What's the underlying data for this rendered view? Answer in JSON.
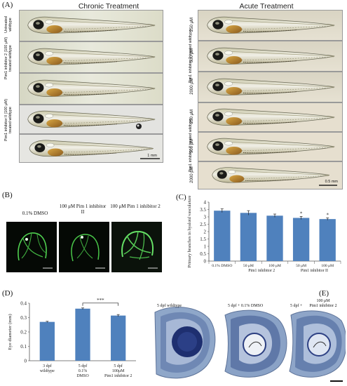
{
  "panelA": {
    "letter": "(A)",
    "chronic_title": "Chronic Treatment",
    "acute_title": "Acute Treatment",
    "chronic_labels": [
      "Untreated wildtype",
      "Pim1 inhibitor 2 (100 μM) treated wildtype",
      "Pim1 inhibitor II (100 μM) treated wildtype"
    ],
    "acute_group_labels": [
      "Pim1 inhibitor 2 treated wildtype",
      "Pim1 inhibitor II treated wildtype"
    ],
    "acute_concs": [
      "250 μM",
      "500 μM",
      "2000 μM",
      "250 μM",
      "500 μM",
      "2000 μM"
    ],
    "scale_chronic": "1 mm",
    "scale_acute": "0.5 mm"
  },
  "panelB": {
    "letter": "(B)",
    "labels": [
      "0.1% DMSO",
      "100 μM Pim 1 inhibitor II",
      "100 μM Pim 1 inhibitor 2"
    ]
  },
  "panelC": {
    "letter": "(C)",
    "chart_data": {
      "type": "bar",
      "categories": [
        "0.1% DMSO",
        "50 μM",
        "100 μM",
        "50 μM",
        "100 μM"
      ],
      "group_labels": [
        "Pim1 inhibitor 2",
        "Pim1 inhibitor II"
      ],
      "values": [
        3.42,
        3.27,
        3.08,
        2.93,
        2.85
      ],
      "errors": [
        0.12,
        0.15,
        0.11,
        0.1,
        0.08
      ],
      "significance": [
        "",
        "",
        "",
        "*",
        "*"
      ],
      "ylabel": "Primary branches in hyaloid vasculature",
      "ylim": [
        0,
        4
      ],
      "yticks": [
        "0",
        "0.5",
        "1",
        "1.5",
        "2",
        "2.5",
        "3",
        "3.5",
        "4"
      ],
      "bar_color": "#4f81bd"
    }
  },
  "panelD": {
    "letter": "(D)",
    "chart_data": {
      "type": "bar",
      "categories": [
        "3 dpf wildtype",
        "5 dpf 0.1% DMSO",
        "5 dpf 100μM Pim1 inhibitor 2"
      ],
      "category_lines": [
        [
          "3 dpf",
          "wildtype"
        ],
        [
          "5 dpf",
          "0.1%",
          "DMSO"
        ],
        [
          "5 dpf",
          "100μM",
          "Pim1 inhibitor 2"
        ]
      ],
      "values": [
        0.27,
        0.362,
        0.314
      ],
      "errors": [
        0.004,
        0.005,
        0.007
      ],
      "significance": "***",
      "ylabel": "Eye diameter (mm)",
      "ylim": [
        0,
        0.4
      ],
      "yticks": [
        "0",
        "0.1",
        "0.2",
        "0.3",
        "0.4"
      ],
      "bar_color": "#4f81bd"
    }
  },
  "panelE": {
    "letter": "(E)",
    "labels": [
      "5 dpf wildtype",
      "5 dpf + 0.1% DMSO",
      "5 dpf +",
      "100 μM",
      "Pim1 inhibitor 2"
    ]
  }
}
